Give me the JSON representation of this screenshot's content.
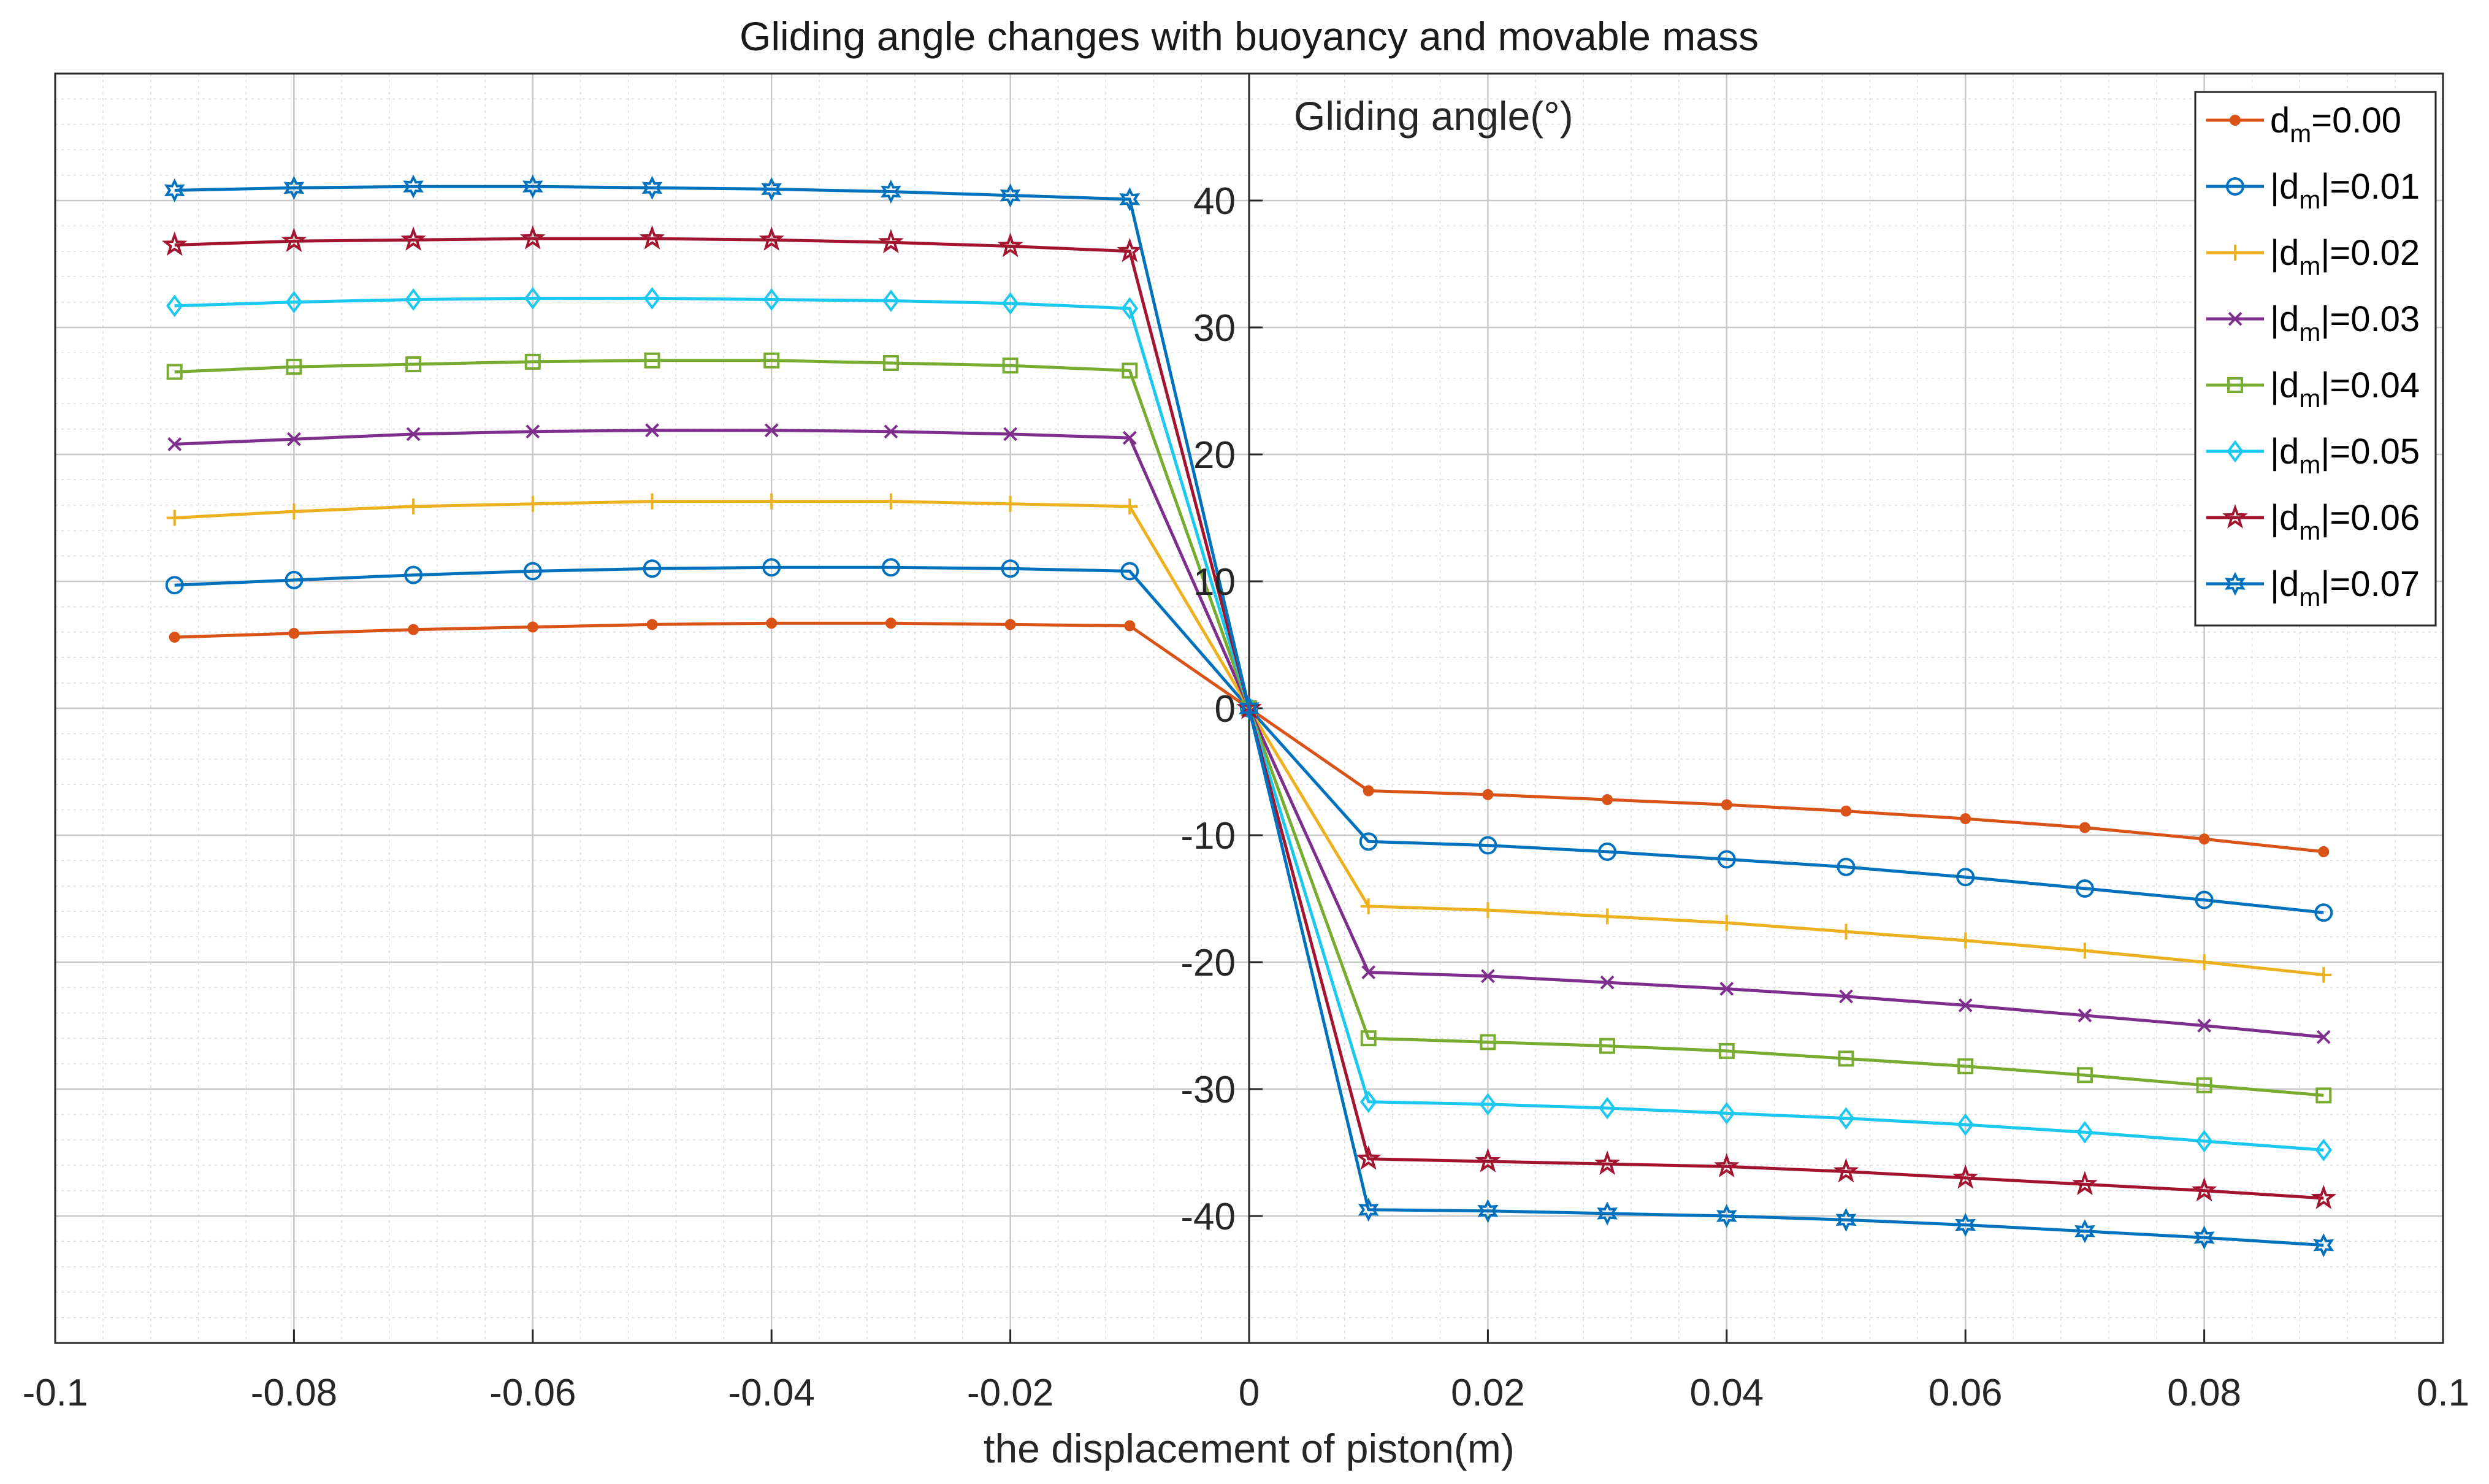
{
  "chart_data": {
    "type": "line",
    "title": "Gliding angle changes with buoyancy and movable mass",
    "xlabel": "the displacement of piston(m)",
    "ylabel_inner": "Gliding angle(°)",
    "xlim": [
      -0.1,
      0.1
    ],
    "ylim": [
      -50,
      50
    ],
    "xticks": [
      -0.1,
      -0.08,
      -0.06,
      -0.04,
      -0.02,
      0,
      0.02,
      0.04,
      0.06,
      0.08,
      0.1
    ],
    "xtick_labels": [
      "-0.1",
      "-0.08",
      "-0.06",
      "-0.04",
      "-0.02",
      "0",
      "0.02",
      "0.04",
      "0.06",
      "0.08",
      "0.1"
    ],
    "yticks": [
      -40,
      -30,
      -20,
      -10,
      0,
      10,
      20,
      30,
      40
    ],
    "ytick_labels": [
      "-40",
      "-30",
      "-20",
      "-10",
      "0",
      "10",
      "20",
      "30",
      "40"
    ],
    "grid": true,
    "legend_position": "top-right",
    "x": [
      -0.09,
      -0.08,
      -0.07,
      -0.06,
      -0.05,
      -0.04,
      -0.03,
      -0.02,
      -0.01,
      0,
      0.01,
      0.02,
      0.03,
      0.04,
      0.05,
      0.06,
      0.07,
      0.08,
      0.09
    ],
    "series": [
      {
        "name": "d_m=0.00",
        "legend_main": "d",
        "legend_sub": "m",
        "legend_rest": "=0.00",
        "legend_pipe": false,
        "color": "#D95319",
        "marker": "dot",
        "values": [
          5.6,
          5.9,
          6.2,
          6.4,
          6.6,
          6.7,
          6.7,
          6.6,
          6.5,
          0,
          -6.5,
          -6.8,
          -7.2,
          -7.6,
          -8.1,
          -8.7,
          -9.4,
          -10.3,
          -11.3
        ]
      },
      {
        "name": "|d_m|=0.01",
        "legend_main": "|d",
        "legend_sub": "m",
        "legend_rest": "|=0.01",
        "legend_pipe": true,
        "color": "#0072BD",
        "marker": "circle",
        "values": [
          9.7,
          10.1,
          10.5,
          10.8,
          11.0,
          11.1,
          11.1,
          11.0,
          10.8,
          0,
          -10.5,
          -10.8,
          -11.3,
          -11.9,
          -12.5,
          -13.3,
          -14.2,
          -15.1,
          -16.1
        ]
      },
      {
        "name": "|d_m|=0.02",
        "legend_main": "|d",
        "legend_sub": "m",
        "legend_rest": "|=0.02",
        "legend_pipe": true,
        "color": "#EDB120",
        "marker": "plus",
        "values": [
          15.0,
          15.5,
          15.9,
          16.1,
          16.3,
          16.3,
          16.3,
          16.1,
          15.9,
          0,
          -15.6,
          -15.9,
          -16.4,
          -16.9,
          -17.6,
          -18.3,
          -19.1,
          -20.0,
          -21.0
        ]
      },
      {
        "name": "|d_m|=0.03",
        "legend_main": "|d",
        "legend_sub": "m",
        "legend_rest": "|=0.03",
        "legend_pipe": true,
        "color": "#7E2F8E",
        "marker": "x",
        "values": [
          20.8,
          21.2,
          21.6,
          21.8,
          21.9,
          21.9,
          21.8,
          21.6,
          21.3,
          0,
          -20.8,
          -21.1,
          -21.6,
          -22.1,
          -22.7,
          -23.4,
          -24.2,
          -25.0,
          -25.9
        ]
      },
      {
        "name": "|d_m|=0.04",
        "legend_main": "|d",
        "legend_sub": "m",
        "legend_rest": "|=0.04",
        "legend_pipe": true,
        "color": "#77AC30",
        "marker": "square",
        "values": [
          26.5,
          26.9,
          27.1,
          27.3,
          27.4,
          27.4,
          27.2,
          27.0,
          26.6,
          0,
          -26.0,
          -26.3,
          -26.6,
          -27.0,
          -27.6,
          -28.2,
          -28.9,
          -29.7,
          -30.5
        ]
      },
      {
        "name": "|d_m|=0.05",
        "legend_main": "|d",
        "legend_sub": "m",
        "legend_rest": "|=0.05",
        "legend_pipe": true,
        "color": "#1AC8F0",
        "marker": "diamond",
        "values": [
          31.7,
          32.0,
          32.2,
          32.3,
          32.3,
          32.2,
          32.1,
          31.9,
          31.5,
          0,
          -31.0,
          -31.2,
          -31.5,
          -31.9,
          -32.3,
          -32.8,
          -33.4,
          -34.1,
          -34.8
        ]
      },
      {
        "name": "|d_m|=0.06",
        "legend_main": "|d",
        "legend_sub": "m",
        "legend_rest": "|=0.06",
        "legend_pipe": true,
        "color": "#A2142F",
        "marker": "star",
        "values": [
          36.5,
          36.8,
          36.9,
          37.0,
          37.0,
          36.9,
          36.7,
          36.4,
          36.0,
          0,
          -35.5,
          -35.7,
          -35.9,
          -36.1,
          -36.5,
          -37.0,
          -37.5,
          -38.0,
          -38.6
        ]
      },
      {
        "name": "|d_m|=0.07",
        "legend_main": "|d",
        "legend_sub": "m",
        "legend_rest": "|=0.07",
        "legend_pipe": true,
        "color": "#0072BD",
        "marker": "hexagram",
        "values": [
          40.8,
          41.0,
          41.1,
          41.1,
          41.0,
          40.9,
          40.7,
          40.4,
          40.1,
          0,
          -39.5,
          -39.6,
          -39.8,
          -40.0,
          -40.3,
          -40.7,
          -41.2,
          -41.7,
          -42.3
        ]
      }
    ]
  }
}
